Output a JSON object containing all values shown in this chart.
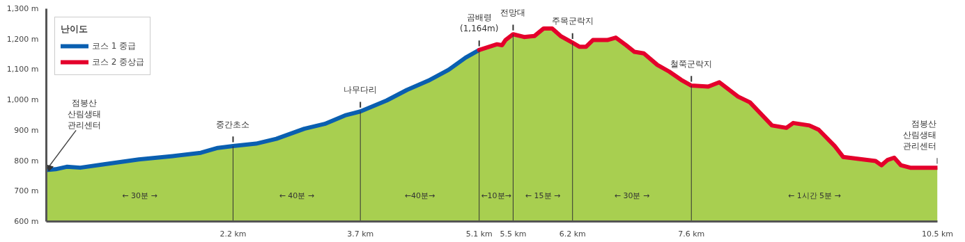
{
  "chart_data": {
    "type": "area",
    "legend_title": "난이도",
    "legend": "top left",
    "grid": false,
    "xlim": [
      0,
      10.5
    ],
    "ylim": [
      600,
      1300
    ],
    "xticks": [
      {
        "value": 2.2,
        "label": "2.2 km"
      },
      {
        "value": 3.7,
        "label": "3.7 km"
      },
      {
        "value": 5.1,
        "label": "5.1 km"
      },
      {
        "value": 5.5,
        "label": "5.5 km"
      },
      {
        "value": 6.2,
        "label": "6.2 km"
      },
      {
        "value": 7.6,
        "label": "7.6 km"
      },
      {
        "value": 10.5,
        "label": "10.5 km"
      }
    ],
    "yticks": [
      {
        "value": 600,
        "label": "600 m"
      },
      {
        "value": 700,
        "label": "700 m"
      },
      {
        "value": 800,
        "label": "800 m"
      },
      {
        "value": 900,
        "label": "900 m"
      },
      {
        "value": 1000,
        "label": "1,000 m"
      },
      {
        "value": 1100,
        "label": "1,100 m"
      },
      {
        "value": 1200,
        "label": "1,200 m"
      },
      {
        "value": 1300,
        "label": "1,300 m"
      }
    ],
    "series": [
      {
        "color": "#a8cf50",
        "x": [
          0,
          0.11,
          0.24,
          0.4,
          0.68,
          1.09,
          1.49,
          1.82,
          2.02,
          2.2,
          2.47,
          2.71,
          3.04,
          3.28,
          3.52,
          3.7,
          4.01,
          4.25,
          4.5,
          4.74,
          4.94,
          5.1,
          5.31,
          5.37,
          5.41,
          5.5,
          5.63,
          5.75,
          5.86,
          5.96,
          6.06,
          6.2,
          6.28,
          6.36,
          6.44,
          6.61,
          6.71,
          6.83,
          6.93,
          7.04,
          7.2,
          7.34,
          7.48,
          7.6,
          7.8,
          7.93,
          8.15,
          8.29,
          8.55,
          8.72,
          8.8,
          8.99,
          9.1,
          9.29,
          9.39,
          9.77,
          9.84,
          9.91,
          9.99,
          10.07,
          10.18,
          10.5
        ],
        "values": [
          769,
          772,
          780,
          777,
          788,
          804,
          815,
          826,
          842,
          848,
          856,
          872,
          905,
          921,
          949,
          962,
          998,
          1033,
          1063,
          1099,
          1139,
          1164,
          1183,
          1180,
          1197,
          1216,
          1207,
          1210,
          1235,
          1235,
          1210,
          1188,
          1175,
          1175,
          1197,
          1197,
          1205,
          1180,
          1158,
          1153,
          1115,
          1093,
          1066,
          1047,
          1044,
          1058,
          1011,
          992,
          916,
          908,
          924,
          916,
          902,
          848,
          812,
          799,
          785,
          802,
          810,
          785,
          777,
          777
        ]
      },
      {
        "type": "line",
        "name": "코스 1 중급",
        "color": "#0a5fb0",
        "x": [
          0,
          0.11,
          0.24,
          0.4,
          0.68,
          1.09,
          1.49,
          1.82,
          2.02,
          2.2,
          2.47,
          2.71,
          3.04,
          3.28,
          3.52,
          3.7,
          4.01,
          4.25,
          4.5,
          4.74,
          4.94,
          5.1
        ],
        "values": [
          769,
          772,
          780,
          777,
          788,
          804,
          815,
          826,
          842,
          848,
          856,
          872,
          905,
          921,
          949,
          962,
          998,
          1033,
          1063,
          1099,
          1139,
          1164
        ]
      },
      {
        "type": "line",
        "name": "코스 2 중상급",
        "color": "#e4002b",
        "x": [
          5.1,
          5.31,
          5.37,
          5.41,
          5.5,
          5.63,
          5.75,
          5.86,
          5.96,
          6.06,
          6.2,
          6.28,
          6.36,
          6.44,
          6.61,
          6.71,
          6.83,
          6.93,
          7.04,
          7.2,
          7.34,
          7.48,
          7.6,
          7.8,
          7.93,
          8.15,
          8.29,
          8.55,
          8.72,
          8.8,
          8.99,
          9.1,
          9.29,
          9.39,
          9.77,
          9.84,
          9.91,
          9.99,
          10.07,
          10.18,
          10.5
        ],
        "values": [
          1164,
          1183,
          1180,
          1197,
          1216,
          1207,
          1210,
          1235,
          1235,
          1210,
          1188,
          1175,
          1175,
          1197,
          1197,
          1205,
          1180,
          1158,
          1153,
          1115,
          1093,
          1066,
          1047,
          1044,
          1058,
          1011,
          992,
          916,
          908,
          924,
          916,
          902,
          848,
          812,
          799,
          785,
          802,
          810,
          785,
          777,
          777
        ]
      }
    ],
    "ref_lines": [
      {
        "axis": "x",
        "value": 2.2,
        "label": null
      },
      {
        "axis": "x",
        "value": 3.7,
        "label": null
      },
      {
        "axis": "x",
        "value": 5.1,
        "label": null
      },
      {
        "axis": "x",
        "value": 5.5,
        "label": null
      },
      {
        "axis": "x",
        "value": 6.2,
        "label": null
      },
      {
        "axis": "x",
        "value": 7.6,
        "label": null
      }
    ],
    "annotations": [
      {
        "text": "점봉산\n산림생태\n관리센터",
        "x": 0,
        "y": 769
      },
      {
        "text": "중간초소",
        "x": 2.2,
        "y": 848
      },
      {
        "text": "나무다리",
        "x": 3.7,
        "y": 962
      },
      {
        "text": "곰배령\n(1,164m)",
        "x": 5.1,
        "y": 1164
      },
      {
        "text": "전망대",
        "x": 5.5,
        "y": 1216
      },
      {
        "text": "주목군락지",
        "x": 6.2,
        "y": 1188
      },
      {
        "text": "철쭉군락지",
        "x": 7.6,
        "y": 1047
      },
      {
        "text": "점봉산\n산림생태\n관리센터",
        "x": 10.5,
        "y": 777
      },
      "← 30분 →",
      "← 40분 →",
      "←40분→",
      "←10분→",
      "← 15분 →",
      "← 30분 →",
      "← 1시간 5분 →"
    ]
  }
}
